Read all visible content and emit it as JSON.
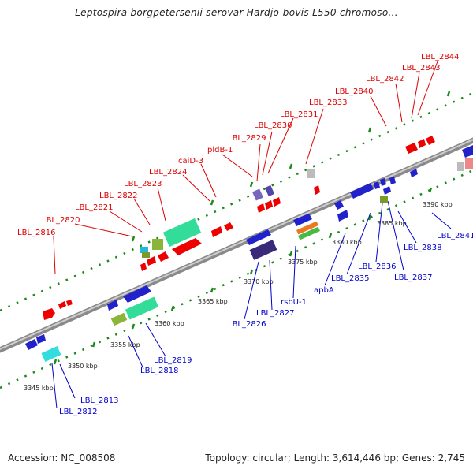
{
  "title": "Leptospira borgpetersenii serovar Hardjo-bovis L550 chromoso...",
  "footer": {
    "accession": "Accession: NC_008508",
    "summary": "Topology: circular; Length: 3,614,446 bp; Genes: 2,745"
  },
  "colors": {
    "upper_label": "#dd0000",
    "lower_label": "#0000cc",
    "tick": "#008800",
    "axis": "#888888"
  },
  "ticks": [
    "3345 kbp",
    "3350 kbp",
    "3355 kbp",
    "3360 kbp",
    "3365 kbp",
    "3370 kbp",
    "3375 kbp",
    "3380 kbp",
    "3385 kbp",
    "3390 kbp"
  ],
  "upper_labels": [
    "LBL_2816",
    "LBL_2820",
    "LBL_2821",
    "LBL_2822",
    "LBL_2823",
    "LBL_2824",
    "caiD-3",
    "pldB-1",
    "LBL_2829",
    "LBL_2830",
    "LBL_2831",
    "LBL_2833",
    "LBL_2840",
    "LBL_2842",
    "LBL_2843",
    "LBL_2844"
  ],
  "lower_labels": [
    "LBL_2812",
    "LBL_2813",
    "LBL_2818",
    "LBL_2819",
    "LBL_2826",
    "LBL_2827",
    "rsbU-1",
    "apbA",
    "LBL_2835",
    "LBL_2836",
    "LBL_2837",
    "LBL_2838",
    "LBL_2841"
  ]
}
